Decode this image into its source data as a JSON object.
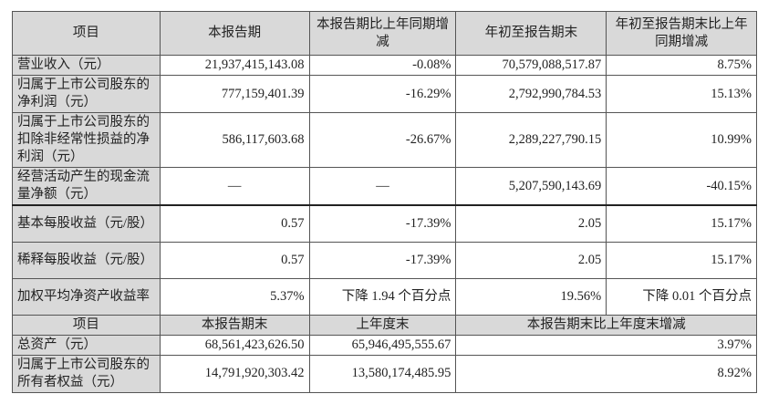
{
  "header1": [
    "项目",
    "本报告期",
    "本报告期比上年同期增减",
    "年初至报告期末",
    "年初至报告期末比上年同期增减"
  ],
  "rows1": [
    [
      "营业收入（元）",
      "21,937,415,143.08",
      "-0.08%",
      "70,579,088,517.87",
      "8.75%"
    ],
    [
      "归属于上市公司股东的净利润（元）",
      "777,159,401.39",
      "-16.29%",
      "2,792,990,784.53",
      "15.13%"
    ],
    [
      "归属于上市公司股东的扣除非经常性损益的净利润（元）",
      "586,117,603.68",
      "-26.67%",
      "2,289,227,790.15",
      "10.99%"
    ],
    [
      "经营活动产生的现金流量净额（元）",
      "—",
      "—",
      "5,207,590,143.69",
      "-40.15%"
    ],
    [
      "基本每股收益（元/股）",
      "0.57",
      "-17.39%",
      "2.05",
      "15.17%"
    ],
    [
      "稀释每股收益（元/股）",
      "0.57",
      "-17.39%",
      "2.05",
      "15.17%"
    ],
    [
      "加权平均净资产收益率",
      "5.37%",
      "下降 1.94 个百分点",
      "19.56%",
      "下降 0.01 个百分点"
    ]
  ],
  "header2": [
    "项目",
    "本报告期末",
    "上年度末",
    "本报告期末比上年度末增减"
  ],
  "rows2": [
    [
      "总资产（元）",
      "68,561,423,626.50",
      "65,946,495,555.67",
      "3.97%"
    ],
    [
      "归属于上市公司股东的所有者权益（元）",
      "14,791,920,303.42",
      "13,580,174,485.95",
      "8.92%"
    ]
  ]
}
